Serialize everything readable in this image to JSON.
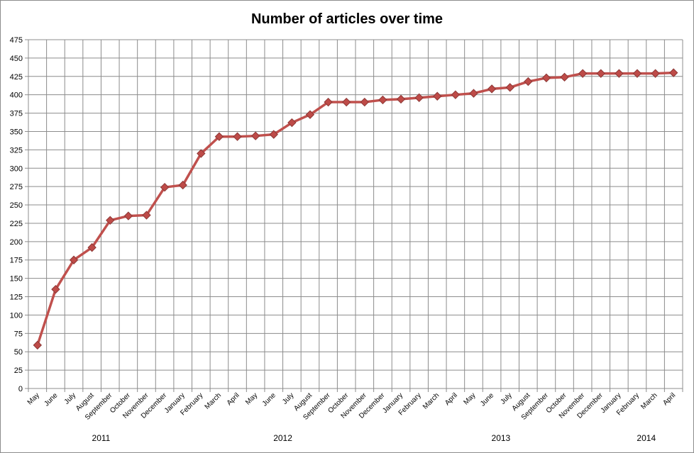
{
  "chart_data": {
    "type": "line",
    "title": "Number of articles over time",
    "xlabel": "",
    "ylabel": "",
    "ylim": [
      0,
      475
    ],
    "y_ticks": [
      "0",
      "25",
      "50",
      "75",
      "100",
      "125",
      "150",
      "175",
      "200",
      "225",
      "250",
      "275",
      "300",
      "325",
      "350",
      "375",
      "400",
      "425",
      "450",
      "475"
    ],
    "grid": true,
    "legend": "none",
    "categories": [
      "May",
      "June",
      "July",
      "August",
      "September",
      "October",
      "November",
      "December",
      "January",
      "February",
      "March",
      "April",
      "May",
      "June",
      "July",
      "August",
      "September",
      "October",
      "November",
      "December",
      "January",
      "February",
      "March",
      "April",
      "May",
      "June",
      "July",
      "August",
      "September",
      "October",
      "November",
      "December",
      "January",
      "February",
      "March",
      "April"
    ],
    "years": [
      {
        "label": "2011",
        "start": 0,
        "end": 7
      },
      {
        "label": "2012",
        "start": 8,
        "end": 19
      },
      {
        "label": "2013",
        "start": 20,
        "end": 31
      },
      {
        "label": "2014",
        "start": 32,
        "end": 35
      }
    ],
    "series": [
      {
        "values": [
          59,
          135,
          175,
          192,
          229,
          235,
          236,
          274,
          277,
          320,
          343,
          343,
          344,
          346,
          362,
          373,
          390,
          390,
          390,
          393,
          394,
          396,
          398,
          400,
          402,
          408,
          410,
          418,
          423,
          424,
          429,
          429,
          429,
          429,
          429,
          430
        ]
      }
    ],
    "colors": {
      "line": "#c0504d",
      "marker": "#be4b48",
      "marker_edge": "#8c3836",
      "grid": "#8c8c8c",
      "axis": "#8c8c8c"
    },
    "marker": "diamond"
  }
}
